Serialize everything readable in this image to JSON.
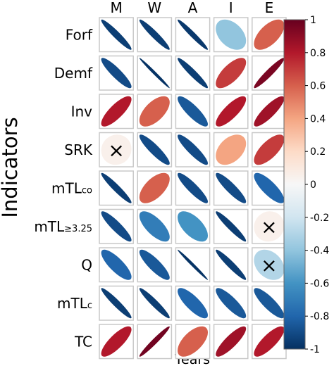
{
  "chart_data": {
    "type": "heatmap",
    "title": "",
    "xlabel": "Years",
    "ylabel": "Indicators",
    "columns": [
      "M",
      "W",
      "A",
      "I",
      "E"
    ],
    "rows": [
      {
        "main": "Forf",
        "sub": ""
      },
      {
        "main": "Demf",
        "sub": ""
      },
      {
        "main": "Inv",
        "sub": ""
      },
      {
        "main": "SRK",
        "sub": ""
      },
      {
        "main": "mTL",
        "sub": "co"
      },
      {
        "main": "mTL",
        "sub": "≥3.25"
      },
      {
        "main": "Q",
        "sub": ""
      },
      {
        "main": "mTL",
        "sub": "c"
      },
      {
        "main": "TC",
        "sub": ""
      }
    ],
    "values": [
      [
        -0.95,
        -0.95,
        -0.97,
        -0.4,
        0.6
      ],
      [
        -0.9,
        -0.99,
        -0.95,
        0.7,
        0.95
      ],
      [
        0.8,
        0.6,
        -0.85,
        0.8,
        0.85
      ],
      [
        0.05,
        -0.9,
        -0.9,
        0.4,
        0.7
      ],
      [
        -0.95,
        0.6,
        -0.9,
        -0.9,
        -0.8
      ],
      [
        -0.9,
        -0.7,
        -0.6,
        -0.95,
        0.05
      ],
      [
        -0.8,
        -0.85,
        -0.99,
        -0.95,
        -0.3
      ],
      [
        -0.95,
        -0.95,
        -0.8,
        -0.85,
        -0.85
      ],
      [
        0.8,
        0.97,
        0.6,
        0.85,
        0.8
      ]
    ],
    "insignificant_marker": "×",
    "insignificant": [
      [
        3,
        0
      ],
      [
        5,
        4
      ],
      [
        6,
        4
      ]
    ],
    "colorbar": {
      "min": -1,
      "max": 1,
      "ticks": [
        "1",
        "0.8",
        "0.6",
        "0.4",
        "0.2",
        "0",
        "-0.2",
        "-0.4",
        "-0.6",
        "-0.8",
        "-1"
      ],
      "colors": [
        "#67001f",
        "#b2182b",
        "#d6604d",
        "#f4a582",
        "#fddbc7",
        "#f7f7f7",
        "#d1e5f0",
        "#92c5de",
        "#4393c3",
        "#2166ac",
        "#053061"
      ]
    }
  }
}
